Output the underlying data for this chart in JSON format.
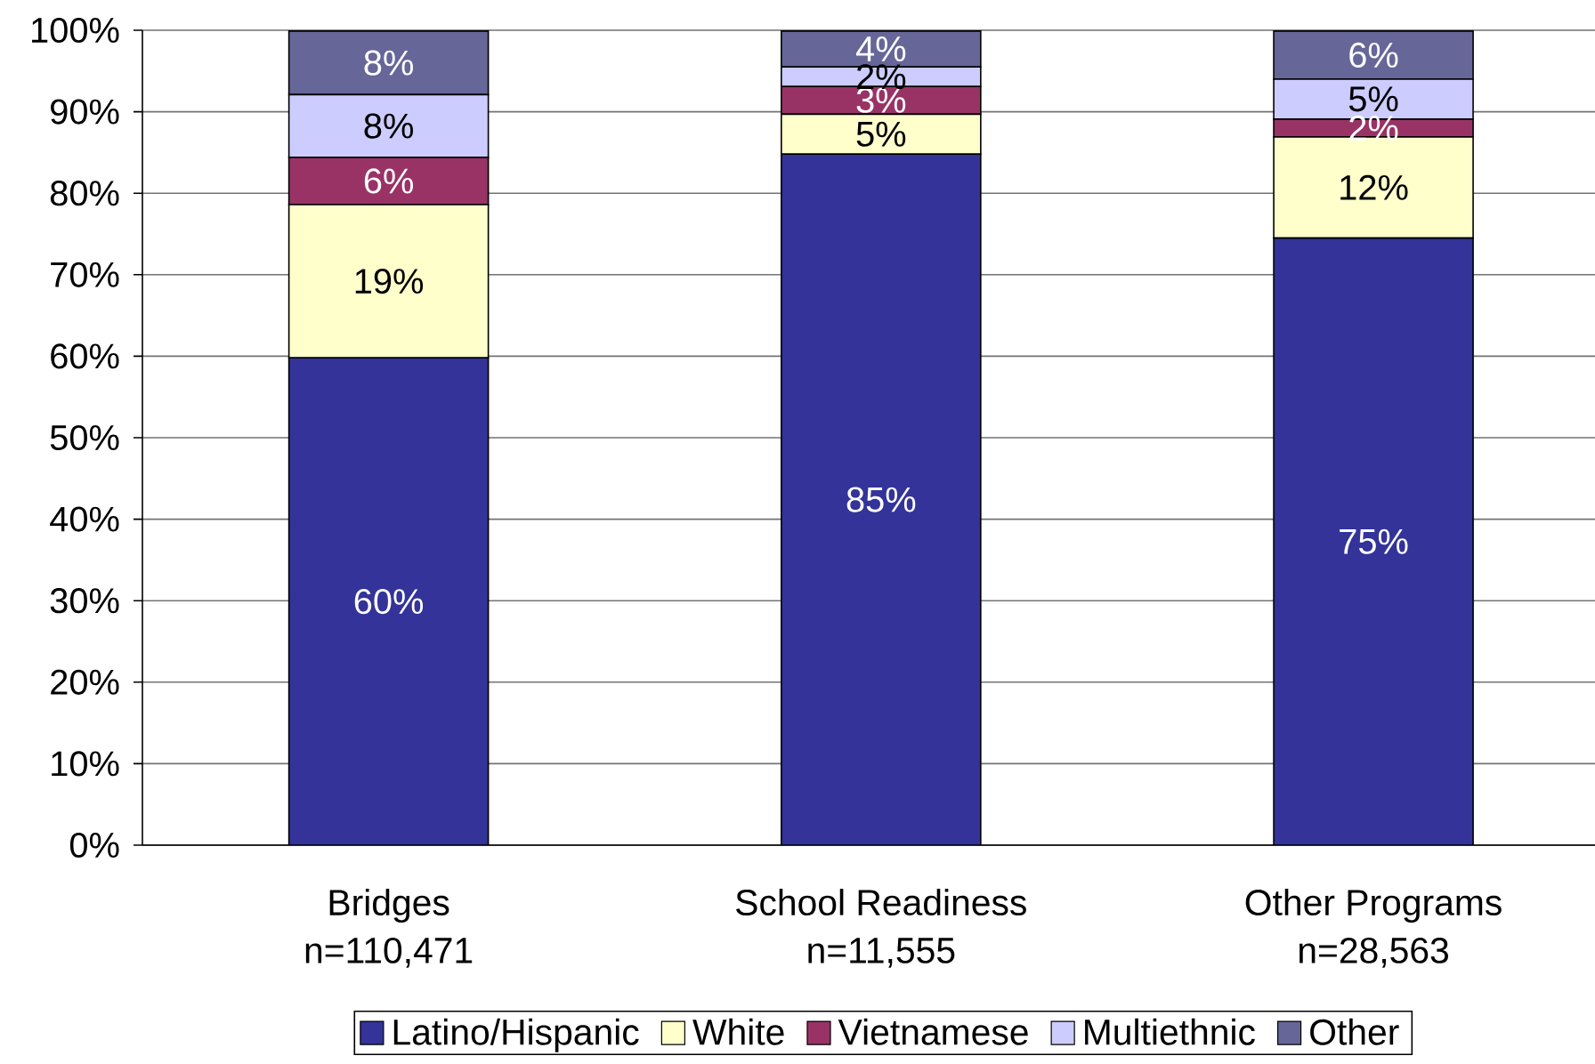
{
  "chart_data": {
    "type": "bar",
    "stacked": true,
    "categories": [
      "Bridges\nn=110,471",
      "School Readiness\nn=11,555",
      "Other Programs\nn=28,563"
    ],
    "series": [
      {
        "name": "Latino/Hispanic",
        "color": "#333399",
        "values": [
          59.8,
          84.8,
          74.5
        ],
        "value_labels": [
          "60%",
          "85%",
          "75%"
        ]
      },
      {
        "name": "White",
        "color": "#ffffcc",
        "values": [
          18.8,
          4.9,
          12.4
        ],
        "value_labels": [
          "19%",
          "5%",
          "12%"
        ]
      },
      {
        "name": "Vietnamese",
        "color": "#993366",
        "values": [
          5.8,
          3.4,
          2.2
        ],
        "value_labels": [
          "6%",
          "3%",
          "2%"
        ]
      },
      {
        "name": "Multiethnic",
        "color": "#ccccff",
        "values": [
          7.7,
          2.4,
          4.9
        ],
        "value_labels": [
          "8%",
          "2%",
          "5%"
        ]
      },
      {
        "name": "Other",
        "color": "#666699",
        "values": [
          7.8,
          4.4,
          5.9
        ],
        "value_labels": [
          "8%",
          "4%",
          "6%"
        ]
      }
    ],
    "ylim": [
      0,
      100
    ],
    "yticks": [
      {
        "value": 0,
        "label": "0%"
      },
      {
        "value": 10,
        "label": "10%"
      },
      {
        "value": 20,
        "label": "20%"
      },
      {
        "value": 30,
        "label": "30%"
      },
      {
        "value": 40,
        "label": "40%"
      },
      {
        "value": 50,
        "label": "50%"
      },
      {
        "value": 60,
        "label": "60%"
      },
      {
        "value": 70,
        "label": "70%"
      },
      {
        "value": 80,
        "label": "80%"
      },
      {
        "value": 90,
        "label": "90%"
      },
      {
        "value": 100,
        "label": "100%"
      }
    ],
    "grid": "y",
    "legend": "bottom"
  }
}
